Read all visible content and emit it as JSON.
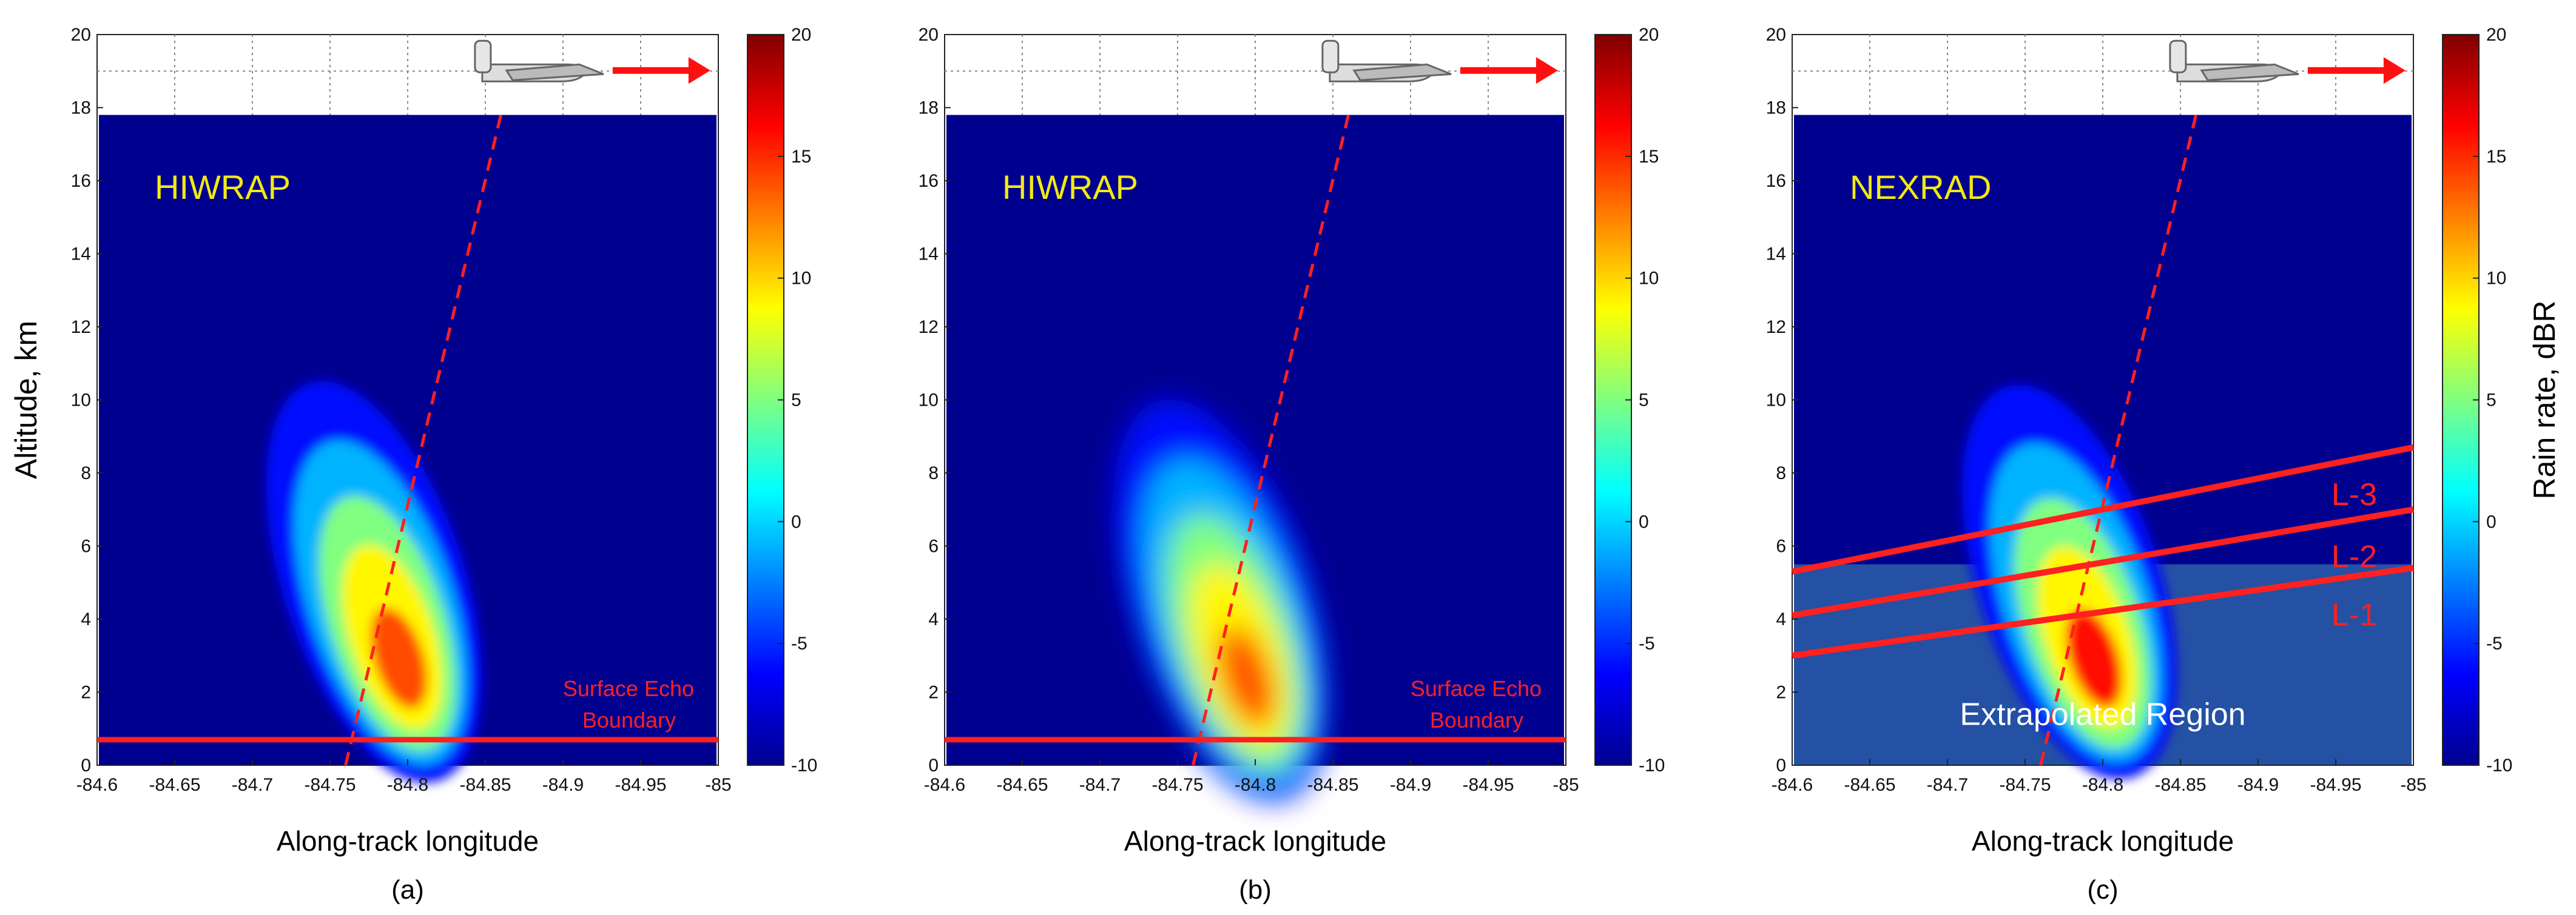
{
  "chart_data": [
    {
      "type": "heatmap",
      "caption": "(a)",
      "instrument_label": "HIWRAP",
      "xlabel": "Along-track longitude",
      "ylabel": "Altitude, km",
      "x_ticks": [
        "-84.6",
        "-84.65",
        "-84.7",
        "-84.75",
        "-84.8",
        "-84.85",
        "-84.9",
        "-84.95",
        "-85"
      ],
      "y_ticks": [
        "0",
        "2",
        "4",
        "6",
        "8",
        "10",
        "12",
        "14",
        "16",
        "18",
        "20"
      ],
      "xlim": [
        -84.6,
        -85
      ],
      "ylim": [
        0,
        20
      ],
      "background_value_dBR": -10,
      "flight_altitude_km": 17.8,
      "echo_core": {
        "lon": -84.79,
        "alt_km": 3.5,
        "peak_dBR": 14,
        "top_alt_km": 11
      },
      "surface_echo_boundary_km": 0.7,
      "surface_echo_label": [
        "Surface Echo",
        "Boundary"
      ],
      "dashed_line": [
        [
          -84.76,
          0
        ],
        [
          -84.86,
          17.8
        ]
      ],
      "colorbar": {
        "ticks": [
          "20",
          "15",
          "10",
          "5",
          "0",
          "-5",
          "-10"
        ],
        "range": [
          -10,
          20
        ],
        "label": ""
      }
    },
    {
      "type": "heatmap",
      "caption": "(b)",
      "instrument_label": "HIWRAP",
      "xlabel": "Along-track longitude",
      "ylabel": "",
      "x_ticks": [
        "-84.6",
        "-84.65",
        "-84.7",
        "-84.75",
        "-84.8",
        "-84.85",
        "-84.9",
        "-84.95",
        "-85"
      ],
      "y_ticks": [
        "0",
        "2",
        "4",
        "6",
        "8",
        "10",
        "12",
        "14",
        "16",
        "18",
        "20"
      ],
      "xlim": [
        -84.6,
        -85
      ],
      "ylim": [
        0,
        20
      ],
      "background_value_dBR": -10,
      "flight_altitude_km": 17.8,
      "echo_core": {
        "lon": -84.79,
        "alt_km": 3,
        "peak_dBR": 14,
        "top_alt_km": 11
      },
      "surface_echo_boundary_km": 0.7,
      "surface_echo_label": [
        "Surface Echo",
        "Boundary"
      ],
      "dashed_line": [
        [
          -84.76,
          0
        ],
        [
          -84.86,
          17.8
        ]
      ],
      "colorbar": {
        "ticks": [
          "20",
          "15",
          "10",
          "5",
          "0",
          "-5",
          "-10"
        ],
        "range": [
          -10,
          20
        ],
        "label": ""
      }
    },
    {
      "type": "heatmap",
      "caption": "(c)",
      "instrument_label": "NEXRAD",
      "xlabel": "Along-track longitude",
      "ylabel": "",
      "x_ticks": [
        "-84.6",
        "-84.65",
        "-84.7",
        "-84.75",
        "-84.8",
        "-84.85",
        "-84.9",
        "-84.95",
        "-85"
      ],
      "y_ticks": [
        "0",
        "2",
        "4",
        "6",
        "8",
        "10",
        "12",
        "14",
        "16",
        "18",
        "20"
      ],
      "xlim": [
        -84.6,
        -85
      ],
      "ylim": [
        0,
        20
      ],
      "background_value_dBR": -10,
      "flight_altitude_km": 17.8,
      "echo_core": {
        "lon": -84.79,
        "alt_km": 3.5,
        "peak_dBR": 16,
        "top_alt_km": 10.8
      },
      "extrapolated_region_label": "Extrapolated Region",
      "extrapolated_region_top_km": 5.5,
      "levels": [
        {
          "name": "L-3",
          "start_km": 5.3,
          "end_km": 8.7
        },
        {
          "name": "L-2",
          "start_km": 4.1,
          "end_km": 7.0
        },
        {
          "name": "L-1",
          "start_km": 3.0,
          "end_km": 5.4
        }
      ],
      "dashed_line": [
        [
          -84.76,
          0
        ],
        [
          -84.86,
          17.8
        ]
      ],
      "colorbar": {
        "ticks": [
          "20",
          "15",
          "10",
          "5",
          "0",
          "-5",
          "-10"
        ],
        "range": [
          -10,
          20
        ],
        "label": "Rain rate, dBR"
      }
    }
  ]
}
